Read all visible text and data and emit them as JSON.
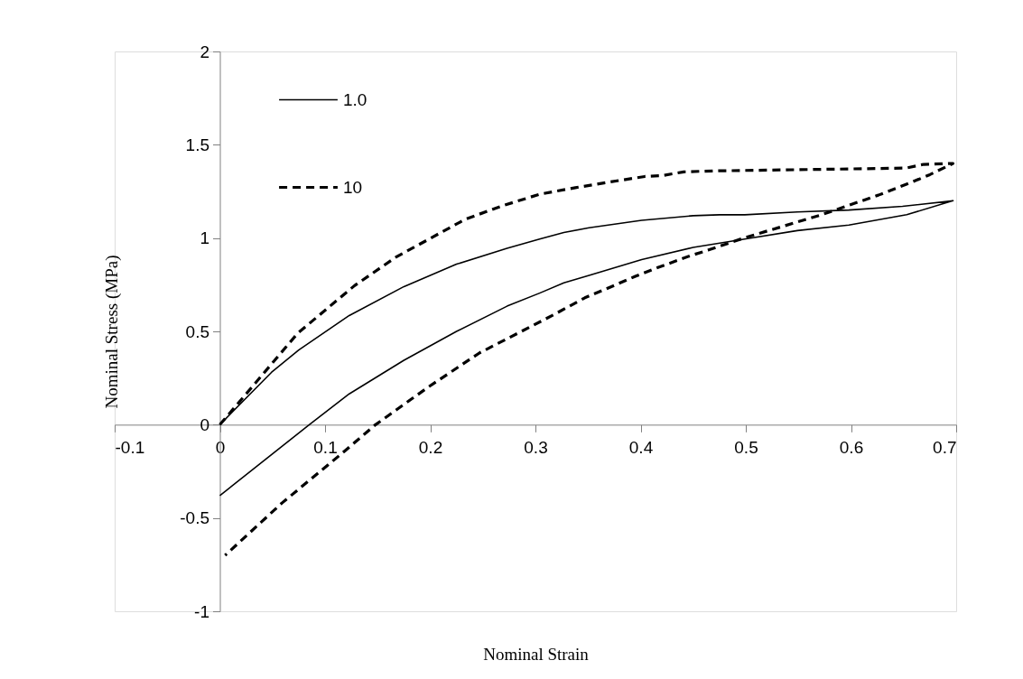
{
  "chart_data": {
    "type": "line",
    "xlabel": "Nominal Strain",
    "ylabel": "Nominal Stress (MPa)",
    "xlim": [
      -0.1,
      0.7
    ],
    "ylim": [
      -1,
      2
    ],
    "xticks": [
      -0.1,
      0,
      0.1,
      0.2,
      0.3,
      0.4,
      0.5,
      0.6,
      0.7
    ],
    "yticks": [
      -1,
      -0.5,
      0,
      0.5,
      1,
      1.5,
      2
    ],
    "grid": false,
    "legend": "top left",
    "series": [
      {
        "name": "1.0",
        "color": "#000000",
        "line_style": "solid",
        "x": [
          0,
          0.049,
          0.075,
          0.123,
          0.175,
          0.225,
          0.273,
          0.304,
          0.327,
          0.351,
          0.401,
          0.45,
          0.475,
          0.499,
          0.549,
          0.598,
          0.649,
          0.697,
          0.653,
          0.598,
          0.549,
          0.499,
          0.45,
          0.401,
          0.351,
          0.327,
          0.304,
          0.273,
          0.225,
          0.175,
          0.123,
          0.085,
          0
        ],
        "values": [
          0,
          0.28,
          0.4,
          0.585,
          0.74,
          0.86,
          0.945,
          0.995,
          1.03,
          1.055,
          1.095,
          1.12,
          1.125,
          1.125,
          1.14,
          1.15,
          1.17,
          1.2,
          1.125,
          1.07,
          1.04,
          0.995,
          0.95,
          0.885,
          0.8,
          0.76,
          0.705,
          0.635,
          0.5,
          0.345,
          0.165,
          0,
          -0.38
        ]
      },
      {
        "name": "10",
        "color": "#000000",
        "line_style": "dashed",
        "x": [
          0,
          0.025,
          0.074,
          0.128,
          0.168,
          0.199,
          0.233,
          0.267,
          0.304,
          0.338,
          0.37,
          0.404,
          0.421,
          0.441,
          0.47,
          0.652,
          0.669,
          0.697,
          0.675,
          0.658,
          0.626,
          0.595,
          0.572,
          0.498,
          0.464,
          0.447,
          0.413,
          0.395,
          0.364,
          0.347,
          0.316,
          0.247,
          0.199,
          0.148,
          0.119,
          0.059,
          0.005
        ],
        "values": [
          0,
          0.165,
          0.49,
          0.745,
          0.9,
          0.995,
          1.1,
          1.17,
          1.235,
          1.27,
          1.3,
          1.33,
          1.335,
          1.355,
          1.36,
          1.375,
          1.395,
          1.4,
          1.34,
          1.3,
          1.23,
          1.17,
          1.125,
          1,
          0.935,
          0.905,
          0.835,
          0.795,
          0.72,
          0.68,
          0.585,
          0.385,
          0.205,
          0,
          -0.14,
          -0.42,
          -0.7
        ]
      }
    ]
  }
}
